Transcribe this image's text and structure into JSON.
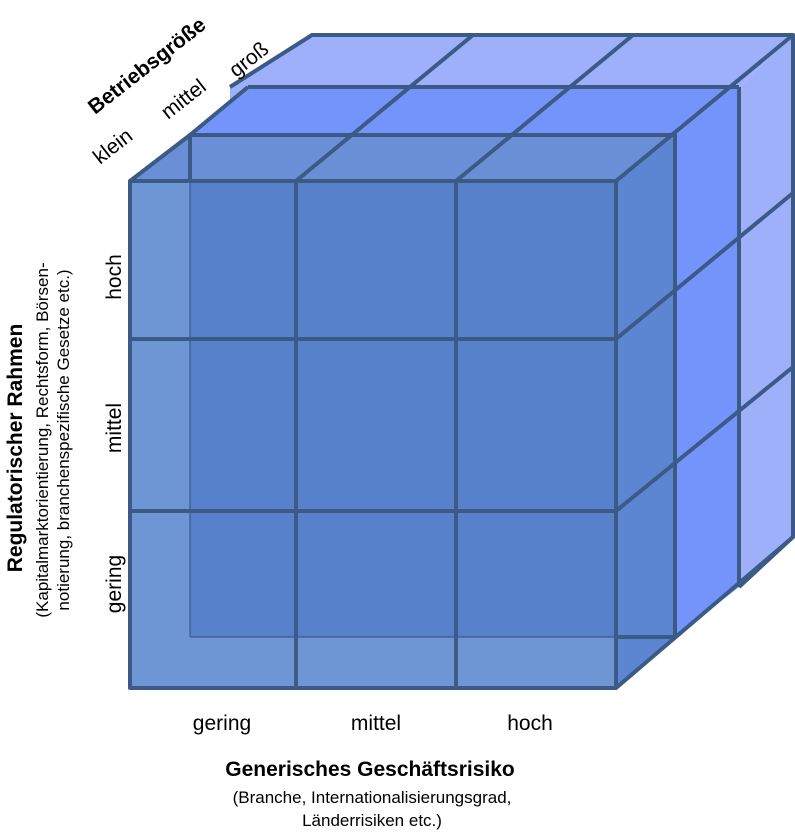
{
  "colors": {
    "line": "#3b5a86",
    "back_face": "#9fb0fa",
    "middle_face": "#7594fb",
    "front_face": "#5782cb",
    "front_overlay": "#6e96d4"
  },
  "axes": {
    "depth": {
      "title": "Betriebsgröße",
      "levels": [
        "klein",
        "mittel",
        "groß"
      ]
    },
    "vertical": {
      "title": "Regulatorischer Rahmen",
      "subtitle_line1": "(Kapitalmarktorientierung, Rechtsform, Börsen-",
      "subtitle_line2": "notierung, branchenspezifische Gesetze etc.)",
      "levels_top_to_bottom": [
        "hoch",
        "mittel",
        "gering"
      ]
    },
    "horizontal": {
      "title": "Generisches Geschäftsrisiko",
      "subtitle_line1": "(Branche, Internationalisierungsgrad,",
      "subtitle_line2": "Länderrisiken etc.)",
      "levels": [
        "gering",
        "mittel",
        "hoch"
      ]
    }
  }
}
